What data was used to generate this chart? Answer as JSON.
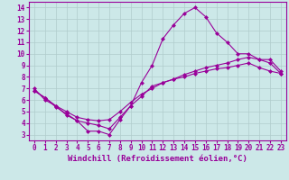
{
  "xlabel": "Windchill (Refroidissement éolien,°C)",
  "background_color": "#cce8e8",
  "line_color": "#990099",
  "xlim_min": -0.5,
  "xlim_max": 23.5,
  "ylim_min": 2.5,
  "ylim_max": 14.5,
  "xticks": [
    0,
    1,
    2,
    3,
    4,
    5,
    6,
    7,
    8,
    9,
    10,
    11,
    12,
    13,
    14,
    15,
    16,
    17,
    18,
    19,
    20,
    21,
    22,
    23
  ],
  "yticks": [
    3,
    4,
    5,
    6,
    7,
    8,
    9,
    10,
    11,
    12,
    13,
    14
  ],
  "line1_x": [
    0,
    1,
    2,
    3,
    4,
    5,
    6,
    7,
    8,
    9,
    10,
    11,
    12,
    13,
    14,
    15,
    16,
    17,
    18,
    19,
    20,
    21,
    22,
    23
  ],
  "line1_y": [
    7.0,
    6.0,
    5.5,
    4.7,
    4.2,
    3.3,
    3.3,
    3.0,
    4.3,
    5.5,
    7.5,
    9.0,
    11.3,
    12.5,
    13.5,
    14.0,
    13.2,
    11.8,
    11.0,
    10.0,
    10.0,
    9.5,
    9.5,
    8.5
  ],
  "line2_x": [
    0,
    1,
    2,
    3,
    4,
    5,
    6,
    7,
    8,
    9,
    10,
    11,
    12,
    13,
    14,
    15,
    16,
    17,
    18,
    19,
    20,
    21,
    22,
    23
  ],
  "line2_y": [
    6.8,
    6.2,
    5.5,
    5.0,
    4.5,
    4.3,
    4.2,
    4.3,
    5.0,
    5.8,
    6.5,
    7.0,
    7.5,
    7.8,
    8.2,
    8.5,
    8.8,
    9.0,
    9.2,
    9.5,
    9.7,
    9.5,
    9.2,
    8.3
  ],
  "line3_x": [
    0,
    1,
    2,
    3,
    4,
    5,
    6,
    7,
    8,
    9,
    10,
    11,
    12,
    13,
    14,
    15,
    16,
    17,
    18,
    19,
    20,
    21,
    22,
    23
  ],
  "line3_y": [
    6.8,
    6.2,
    5.4,
    4.8,
    4.2,
    4.0,
    3.8,
    3.5,
    4.5,
    5.5,
    6.3,
    7.2,
    7.5,
    7.8,
    8.0,
    8.3,
    8.5,
    8.7,
    8.8,
    9.0,
    9.2,
    8.8,
    8.5,
    8.3
  ],
  "grid_color": "#b0cccc",
  "xlabel_fontsize": 6.5,
  "tick_fontsize": 5.5,
  "markersize": 2.5,
  "linewidth": 0.8
}
